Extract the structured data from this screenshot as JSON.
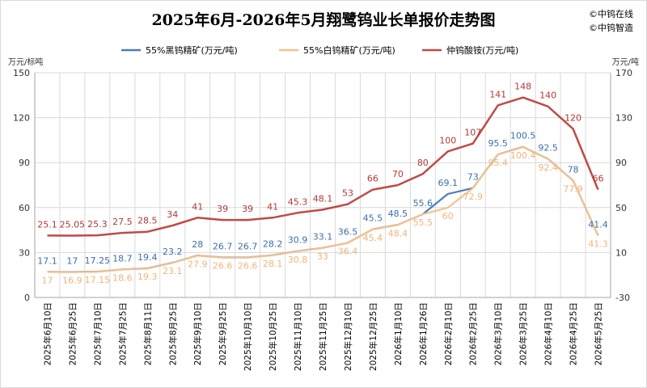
{
  "chart_data": {
    "type": "line",
    "title": "2025年6月-2026年5月翔鹭钨业长单报价走势图",
    "watermarks": [
      "©中钨在线",
      "©中钨智造"
    ],
    "left_unit": "万元/标吨",
    "right_unit": "万元/吨",
    "left_axis": {
      "min": 0,
      "max": 150,
      "ticks": [
        0,
        30,
        60,
        90,
        120,
        150
      ]
    },
    "right_axis": {
      "min": -30,
      "max": 170,
      "ticks": [
        -30,
        10,
        50,
        90,
        130,
        170
      ]
    },
    "grid": true,
    "legend_position": "top",
    "categories": [
      "2025年6月10日",
      "2025年6月25日",
      "2025年7月10日",
      "2025年7月25日",
      "2025年8月11日",
      "2025年8月25日",
      "2025年9月10日",
      "2025年9月25日",
      "2025年10月10日",
      "2025年10月25日",
      "2025年11月10日",
      "2025年11月25日",
      "2025年12月10日",
      "2025年12月25日",
      "2026年1月10日",
      "2026年1月26日",
      "2026年2月10日",
      "2026年2月25日",
      "2026年3月10日",
      "2026年3月25日",
      "2026年4月10日",
      "2026年4月25日",
      "2026年5月25日"
    ],
    "series": [
      {
        "name": "55%黑钨精矿(万元/吨)",
        "axis": "left",
        "color": "#4a7ebb",
        "label_color": "#3d6fa8",
        "values": [
          17.1,
          17,
          17.25,
          18.7,
          19.4,
          23.2,
          28,
          26.7,
          26.7,
          28.2,
          30.9,
          33.1,
          36.5,
          45.5,
          48.5,
          55.6,
          69.1,
          73,
          95.5,
          100.5,
          92.5,
          78,
          41.4
        ],
        "labels": [
          "17.1",
          "17",
          "17.25",
          "18.7",
          "19.4",
          "23.2",
          "28",
          "26.7",
          "26.7",
          "28.2",
          "30.9",
          "33.1",
          "36.5",
          "45.5",
          "48.5",
          "55.6",
          "69.1",
          "73",
          "95.5",
          "100.5",
          "92.5",
          "78",
          "41.4"
        ]
      },
      {
        "name": "55%白钨精矿(万元/吨)",
        "axis": "left",
        "color": "#f5c18e",
        "label_color": "#f0b47a",
        "values": [
          17,
          16.9,
          17.15,
          18.6,
          19.3,
          23.1,
          27.9,
          26.6,
          26.6,
          28.1,
          30.8,
          33,
          36.4,
          45.4,
          48.4,
          55.5,
          60,
          72.9,
          95.4,
          100.4,
          92.4,
          77.9,
          41.3
        ],
        "labels": [
          "17",
          "16.9",
          "17.15",
          "18.6",
          "19.3",
          "23.1",
          "27.9",
          "26.6",
          "26.6",
          "28.1",
          "30.8",
          "33",
          "36.4",
          "45.4",
          "48.4",
          "55.5",
          "60",
          "72.9",
          "95.4",
          "100.4",
          "92.4",
          "77.9",
          "41.3"
        ]
      },
      {
        "name": "仲钨酸铵(万元/吨)",
        "axis": "right",
        "color": "#be4b48",
        "label_color": "#b03a36",
        "values": [
          25.1,
          25.05,
          25.3,
          27.5,
          28.5,
          34,
          41,
          39,
          39,
          41,
          45.3,
          48.1,
          53,
          66,
          70,
          80,
          100,
          107,
          141,
          148,
          140,
          120,
          66
        ],
        "labels": [
          "25.1",
          "25.05",
          "25.3",
          "27.5",
          "28.5",
          "34",
          "41",
          "39",
          "39",
          "41",
          "45.3",
          "48.1",
          "53",
          "66",
          "70",
          "80",
          "100",
          "107",
          "141",
          "148",
          "140",
          "120",
          "66"
        ]
      }
    ]
  }
}
